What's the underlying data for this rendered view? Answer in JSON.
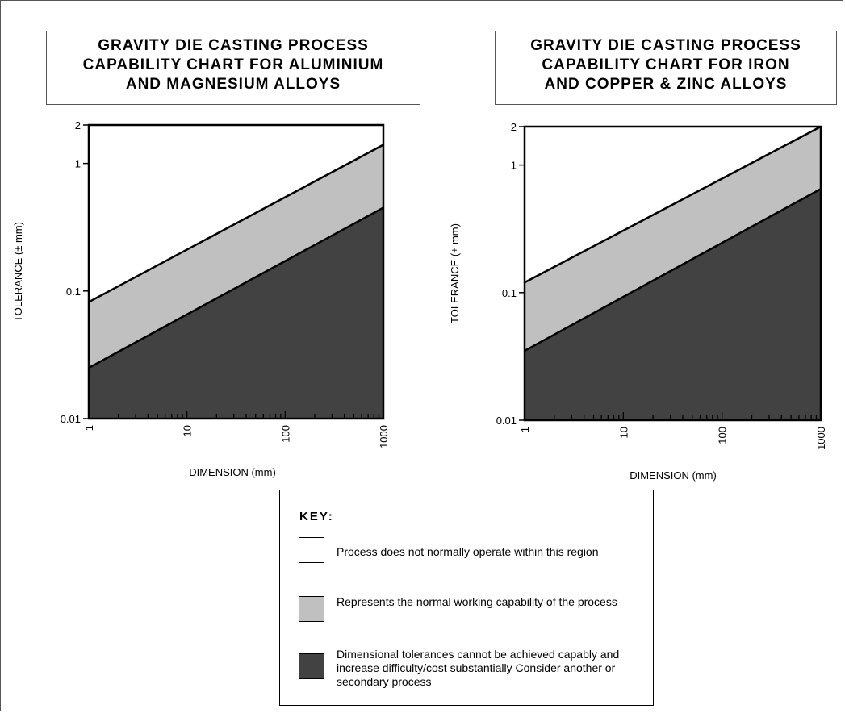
{
  "legend": {
    "title": "KEY:",
    "items": [
      {
        "label": "Process does not normally operate within this region",
        "color": "#ffffff"
      },
      {
        "label": "Represents the normal working capability of the process",
        "color": "#c0c0c0"
      },
      {
        "label": "Dimensional tolerances cannot be achieved capably and increase difficulty/cost substantially Consider another or secondary process",
        "color": "#424242"
      }
    ]
  },
  "chart_data": [
    {
      "type": "area",
      "title_lines": [
        "GRAVITY DIE CASTING PROCESS",
        "CAPABILITY CHART FOR ALUMINIUM",
        "AND MAGNESIUM ALLOYS"
      ],
      "xlabel": "DIMENSION (mm)",
      "ylabel": "TOLERANCE (± mm)",
      "xscale": "log",
      "yscale": "log",
      "xlim": [
        1,
        1000
      ],
      "ylim": [
        0.01,
        2
      ],
      "xticks": [
        "1",
        "10",
        "100",
        "1000"
      ],
      "yticks": [
        "0.01",
        "0.1",
        "1",
        "2"
      ],
      "grid": false,
      "series": [
        {
          "x": [
            1,
            1000
          ],
          "values": [
            0.082,
            1.4
          ],
          "fill": "#c0c0c0"
        },
        {
          "x": [
            1,
            1000
          ],
          "values": [
            0.025,
            0.45
          ],
          "fill": "#424242"
        }
      ]
    },
    {
      "type": "area",
      "title_lines": [
        "GRAVITY DIE CASTING PROCESS",
        "CAPABILITY CHART FOR IRON",
        "AND COPPER & ZINC ALLOYS"
      ],
      "xlabel": "DIMENSION (mm)",
      "ylabel": "TOLERANCE (± mm)",
      "xscale": "log",
      "yscale": "log",
      "xlim": [
        1,
        1000
      ],
      "ylim": [
        0.01,
        2
      ],
      "xticks": [
        "1",
        "10",
        "100",
        "1000"
      ],
      "yticks": [
        "0.01",
        "0.1",
        "1",
        "2"
      ],
      "grid": false,
      "series": [
        {
          "x": [
            1,
            1000
          ],
          "values": [
            0.12,
            2.0
          ],
          "fill": "#c0c0c0"
        },
        {
          "x": [
            1,
            1000
          ],
          "values": [
            0.035,
            0.65
          ],
          "fill": "#424242"
        }
      ]
    }
  ]
}
